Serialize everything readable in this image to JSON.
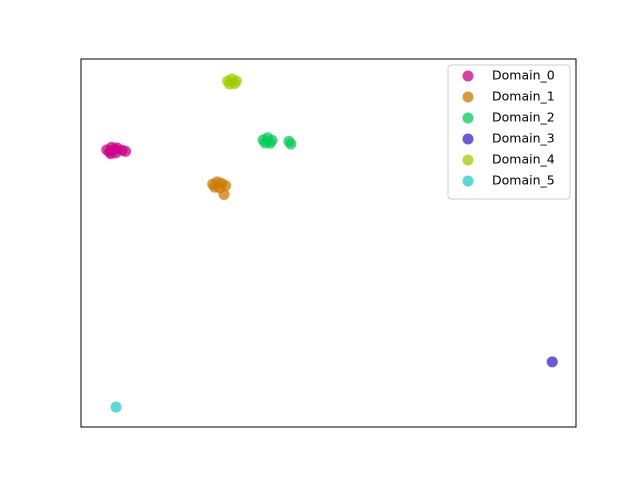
{
  "chart_data": {
    "type": "scatter",
    "xlim": [
      0,
      100
    ],
    "ylim": [
      0,
      100
    ],
    "legend": "upper right",
    "series": [
      {
        "name": "Domain_0",
        "color": "#cc0088",
        "x": [
          5.2,
          6.2,
          7.3,
          8.3,
          6.0,
          7.0,
          9.0,
          5.8,
          6.8
        ],
        "y": [
          75.3,
          76.0,
          75.8,
          75.2,
          74.3,
          74.5,
          74.9,
          74.8,
          75.4
        ]
      },
      {
        "name": "Domain_1",
        "color": "#cc7a00",
        "x": [
          26.6,
          27.5,
          28.4,
          29.2,
          27.0,
          28.0,
          28.9
        ],
        "y": [
          66.0,
          66.6,
          66.2,
          65.6,
          65.2,
          65.0,
          63.2
        ]
      },
      {
        "name": "Domain_2",
        "color": "#00cc55",
        "x": [
          36.8,
          37.7,
          38.6,
          37.2,
          38.2,
          42.0,
          42.4
        ],
        "y": [
          78.0,
          78.6,
          77.9,
          77.2,
          77.1,
          77.6,
          76.9
        ]
      },
      {
        "name": "Domain_3",
        "color": "#3a1fcc",
        "x": [
          95.2
        ],
        "y": [
          17.7
        ]
      },
      {
        "name": "Domain_4",
        "color": "#a0cc00",
        "x": [
          29.6,
          30.5,
          31.4,
          30.0,
          31.0
        ],
        "y": [
          94.0,
          94.6,
          94.0,
          93.2,
          93.3
        ]
      },
      {
        "name": "Domain_5",
        "color": "#22cccc",
        "x": [
          7.1
        ],
        "y": [
          5.4
        ]
      }
    ]
  }
}
